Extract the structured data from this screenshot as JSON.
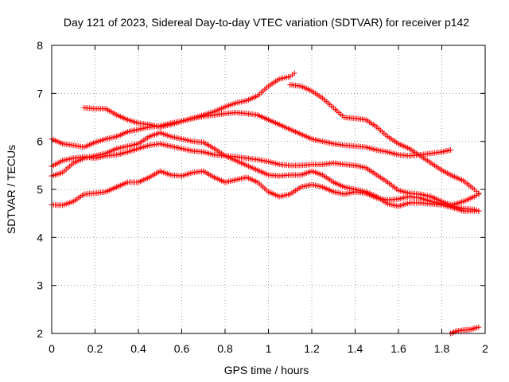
{
  "chart_data": {
    "type": "scatter",
    "title": "Day 121 of 2023, Sidereal Day-to-day VTEC variation (SDTVAR) for receiver p142",
    "xlabel": "GPS time / hours",
    "ylabel": "SDTVAR / TECUs",
    "xlim": [
      0,
      2
    ],
    "ylim": [
      2,
      8
    ],
    "xticks": [
      0,
      0.2,
      0.4,
      0.6,
      0.8,
      1,
      1.2,
      1.4,
      1.6,
      1.8,
      2
    ],
    "xtick_labels": [
      "0",
      "0.2",
      "0.4",
      "0.6",
      "0.8",
      "1",
      "1.2",
      "1.4",
      "1.6",
      "1.8",
      "2"
    ],
    "yticks": [
      2,
      3,
      4,
      5,
      6,
      7,
      8
    ],
    "ytick_labels": [
      "2",
      "3",
      "4",
      "5",
      "6",
      "7",
      "8"
    ],
    "grid": true,
    "marker": "+",
    "color": "#ff0000",
    "series": [
      {
        "name": "trace-1",
        "points": [
          [
            0,
            4.68
          ],
          [
            0.05,
            4.67
          ],
          [
            0.1,
            4.75
          ],
          [
            0.15,
            4.9
          ],
          [
            0.2,
            4.92
          ],
          [
            0.25,
            4.95
          ],
          [
            0.3,
            5.05
          ],
          [
            0.35,
            5.15
          ],
          [
            0.4,
            5.15
          ],
          [
            0.45,
            5.25
          ],
          [
            0.5,
            5.38
          ],
          [
            0.55,
            5.3
          ],
          [
            0.6,
            5.28
          ],
          [
            0.65,
            5.35
          ],
          [
            0.7,
            5.38
          ],
          [
            0.75,
            5.25
          ],
          [
            0.8,
            5.15
          ],
          [
            0.85,
            5.2
          ],
          [
            0.9,
            5.25
          ],
          [
            0.95,
            5.15
          ],
          [
            1.0,
            4.95
          ],
          [
            1.05,
            4.85
          ],
          [
            1.1,
            4.9
          ],
          [
            1.15,
            5.05
          ],
          [
            1.2,
            5.1
          ],
          [
            1.25,
            5.05
          ],
          [
            1.3,
            4.95
          ],
          [
            1.35,
            4.9
          ],
          [
            1.4,
            4.95
          ],
          [
            1.45,
            4.92
          ],
          [
            1.5,
            4.82
          ],
          [
            1.55,
            4.78
          ],
          [
            1.6,
            4.8
          ],
          [
            1.65,
            4.85
          ],
          [
            1.7,
            4.82
          ],
          [
            1.75,
            4.75
          ],
          [
            1.8,
            4.7
          ],
          [
            1.85,
            4.68
          ],
          [
            1.9,
            4.75
          ],
          [
            1.95,
            4.85
          ],
          [
            1.97,
            4.9
          ]
        ]
      },
      {
        "name": "trace-2",
        "points": [
          [
            0,
            5.28
          ],
          [
            0.05,
            5.35
          ],
          [
            0.1,
            5.55
          ],
          [
            0.15,
            5.65
          ],
          [
            0.2,
            5.7
          ],
          [
            0.25,
            5.75
          ],
          [
            0.3,
            5.85
          ],
          [
            0.35,
            5.9
          ],
          [
            0.4,
            5.95
          ],
          [
            0.45,
            6.1
          ],
          [
            0.5,
            6.18
          ],
          [
            0.55,
            6.1
          ],
          [
            0.6,
            6.05
          ],
          [
            0.65,
            6.0
          ],
          [
            0.7,
            5.98
          ],
          [
            0.75,
            5.85
          ],
          [
            0.8,
            5.7
          ],
          [
            0.85,
            5.6
          ],
          [
            0.9,
            5.5
          ],
          [
            0.95,
            5.4
          ],
          [
            1.0,
            5.3
          ],
          [
            1.05,
            5.28
          ],
          [
            1.1,
            5.3
          ],
          [
            1.15,
            5.3
          ],
          [
            1.2,
            5.38
          ],
          [
            1.25,
            5.3
          ],
          [
            1.3,
            5.15
          ],
          [
            1.35,
            5.05
          ],
          [
            1.4,
            5.0
          ],
          [
            1.45,
            4.95
          ],
          [
            1.5,
            4.85
          ],
          [
            1.55,
            4.7
          ],
          [
            1.6,
            4.65
          ],
          [
            1.65,
            4.72
          ],
          [
            1.7,
            4.72
          ],
          [
            1.75,
            4.7
          ],
          [
            1.8,
            4.68
          ],
          [
            1.85,
            4.62
          ],
          [
            1.9,
            4.55
          ],
          [
            1.95,
            4.55
          ],
          [
            1.97,
            4.55
          ]
        ]
      },
      {
        "name": "trace-3",
        "points": [
          [
            0,
            5.48
          ],
          [
            0.05,
            5.6
          ],
          [
            0.1,
            5.65
          ],
          [
            0.15,
            5.68
          ],
          [
            0.2,
            5.65
          ],
          [
            0.25,
            5.7
          ],
          [
            0.3,
            5.72
          ],
          [
            0.35,
            5.78
          ],
          [
            0.4,
            5.85
          ],
          [
            0.45,
            5.92
          ],
          [
            0.5,
            5.95
          ],
          [
            0.55,
            5.9
          ],
          [
            0.6,
            5.85
          ],
          [
            0.65,
            5.8
          ],
          [
            0.7,
            5.78
          ],
          [
            0.75,
            5.72
          ],
          [
            0.8,
            5.7
          ],
          [
            0.85,
            5.68
          ],
          [
            0.9,
            5.65
          ],
          [
            0.95,
            5.62
          ],
          [
            1.0,
            5.58
          ],
          [
            1.05,
            5.52
          ],
          [
            1.1,
            5.5
          ],
          [
            1.15,
            5.5
          ],
          [
            1.2,
            5.52
          ],
          [
            1.25,
            5.52
          ],
          [
            1.3,
            5.55
          ],
          [
            1.35,
            5.52
          ],
          [
            1.4,
            5.5
          ],
          [
            1.45,
            5.45
          ],
          [
            1.5,
            5.3
          ],
          [
            1.55,
            5.15
          ],
          [
            1.6,
            4.98
          ],
          [
            1.65,
            4.92
          ],
          [
            1.7,
            4.9
          ],
          [
            1.75,
            4.85
          ],
          [
            1.8,
            4.75
          ],
          [
            1.85,
            4.65
          ],
          [
            1.9,
            4.6
          ],
          [
            1.95,
            4.58
          ],
          [
            1.97,
            4.55
          ]
        ]
      },
      {
        "name": "trace-4",
        "points": [
          [
            0,
            6.05
          ],
          [
            0.05,
            5.95
          ],
          [
            0.1,
            5.92
          ],
          [
            0.15,
            5.88
          ],
          [
            0.2,
            5.98
          ],
          [
            0.25,
            6.05
          ],
          [
            0.3,
            6.1
          ],
          [
            0.35,
            6.2
          ],
          [
            0.4,
            6.25
          ],
          [
            0.45,
            6.3
          ],
          [
            0.5,
            6.32
          ],
          [
            0.55,
            6.38
          ],
          [
            0.6,
            6.42
          ],
          [
            0.65,
            6.48
          ],
          [
            0.7,
            6.52
          ],
          [
            0.75,
            6.55
          ],
          [
            0.8,
            6.58
          ],
          [
            0.85,
            6.6
          ],
          [
            0.9,
            6.58
          ],
          [
            0.95,
            6.55
          ],
          [
            1.0,
            6.45
          ],
          [
            1.05,
            6.35
          ],
          [
            1.1,
            6.25
          ],
          [
            1.15,
            6.15
          ],
          [
            1.2,
            6.05
          ],
          [
            1.25,
            6.0
          ],
          [
            1.3,
            5.95
          ],
          [
            1.35,
            5.92
          ],
          [
            1.4,
            5.9
          ],
          [
            1.45,
            5.88
          ],
          [
            1.5,
            5.82
          ],
          [
            1.55,
            5.78
          ],
          [
            1.6,
            5.72
          ],
          [
            1.65,
            5.7
          ],
          [
            1.7,
            5.72
          ],
          [
            1.75,
            5.75
          ],
          [
            1.8,
            5.78
          ],
          [
            1.84,
            5.82
          ]
        ]
      },
      {
        "name": "trace-5",
        "points": [
          [
            0.15,
            6.7
          ],
          [
            0.2,
            6.68
          ],
          [
            0.25,
            6.68
          ],
          [
            0.3,
            6.55
          ],
          [
            0.35,
            6.45
          ],
          [
            0.4,
            6.38
          ],
          [
            0.45,
            6.35
          ],
          [
            0.5,
            6.3
          ],
          [
            0.55,
            6.35
          ],
          [
            0.6,
            6.42
          ],
          [
            0.65,
            6.48
          ],
          [
            0.7,
            6.55
          ],
          [
            0.75,
            6.62
          ],
          [
            0.8,
            6.72
          ],
          [
            0.85,
            6.8
          ],
          [
            0.9,
            6.85
          ],
          [
            0.95,
            6.95
          ],
          [
            1.0,
            7.15
          ],
          [
            1.05,
            7.3
          ],
          [
            1.1,
            7.35
          ],
          [
            1.12,
            7.42
          ]
        ]
      },
      {
        "name": "trace-6",
        "points": [
          [
            1.1,
            7.18
          ],
          [
            1.15,
            7.15
          ],
          [
            1.2,
            7.05
          ],
          [
            1.25,
            6.9
          ],
          [
            1.3,
            6.7
          ],
          [
            1.35,
            6.5
          ],
          [
            1.4,
            6.48
          ],
          [
            1.45,
            6.45
          ],
          [
            1.5,
            6.3
          ],
          [
            1.55,
            6.1
          ],
          [
            1.6,
            5.95
          ],
          [
            1.65,
            5.85
          ],
          [
            1.7,
            5.7
          ],
          [
            1.75,
            5.55
          ],
          [
            1.8,
            5.4
          ],
          [
            1.85,
            5.28
          ],
          [
            1.9,
            5.18
          ],
          [
            1.95,
            5.0
          ],
          [
            1.97,
            4.92
          ]
        ]
      },
      {
        "name": "trace-7",
        "points": [
          [
            1.84,
            2.0
          ],
          [
            1.87,
            2.05
          ],
          [
            1.9,
            2.07
          ],
          [
            1.93,
            2.08
          ],
          [
            1.96,
            2.12
          ],
          [
            1.97,
            2.13
          ]
        ]
      }
    ]
  }
}
